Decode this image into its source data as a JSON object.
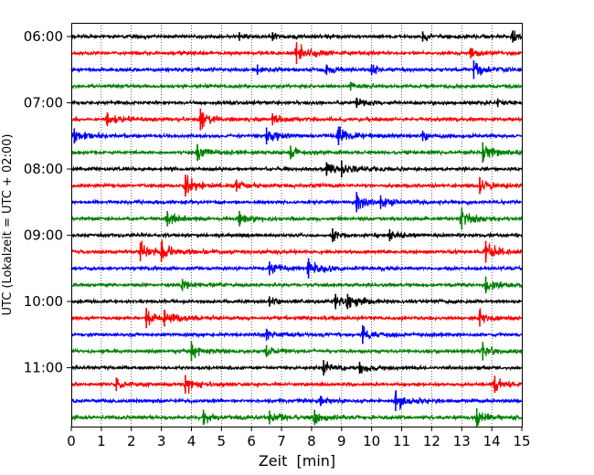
{
  "chart_data": {
    "type": "line",
    "title": "",
    "xlabel": "Zeit  [min]",
    "ylabel": "UTC (Lokalzeit = UTC + 02:00)",
    "xlim": [
      0,
      15
    ],
    "x_ticks": [
      "0",
      "1",
      "2",
      "3",
      "4",
      "5",
      "6",
      "7",
      "8",
      "9",
      "10",
      "11",
      "12",
      "13",
      "14",
      "15"
    ],
    "y_ticks": [
      "06:00",
      "07:00",
      "08:00",
      "09:00",
      "10:00",
      "11:00"
    ],
    "grid": "vertical-dotted",
    "row_interval_min": 15,
    "trace_colors": [
      "#000000",
      "#ff0000",
      "#0000ff",
      "#008000"
    ],
    "traces": [
      {
        "start": "06:00",
        "color": "#000000",
        "events": [
          {
            "t": 5.6,
            "a": 0.2
          },
          {
            "t": 6.7,
            "a": 0.2
          },
          {
            "t": 11.7,
            "a": 0.3
          },
          {
            "t": 14.7,
            "a": 0.4
          }
        ]
      },
      {
        "start": "06:15",
        "color": "#ff0000",
        "events": [
          {
            "t": 7.5,
            "a": 1.0
          },
          {
            "t": 13.3,
            "a": 0.3
          }
        ]
      },
      {
        "start": "06:30",
        "color": "#0000ff",
        "events": [
          {
            "t": 6.2,
            "a": 0.3
          },
          {
            "t": 8.5,
            "a": 0.3
          },
          {
            "t": 10.0,
            "a": 0.3
          },
          {
            "t": 13.4,
            "a": 0.8
          }
        ]
      },
      {
        "start": "06:45",
        "color": "#008000",
        "events": [
          {
            "t": 9.3,
            "a": 0.2
          }
        ]
      },
      {
        "start": "07:00",
        "color": "#000000",
        "events": [
          {
            "t": 9.5,
            "a": 0.3
          },
          {
            "t": 14.2,
            "a": 0.2
          }
        ]
      },
      {
        "start": "07:15",
        "color": "#ff0000",
        "events": [
          {
            "t": 1.2,
            "a": 0.5
          },
          {
            "t": 4.3,
            "a": 1.0
          },
          {
            "t": 6.7,
            "a": 0.4
          }
        ]
      },
      {
        "start": "07:30",
        "color": "#0000ff",
        "events": [
          {
            "t": 0.1,
            "a": 0.6
          },
          {
            "t": 6.5,
            "a": 0.7
          },
          {
            "t": 8.9,
            "a": 0.8
          },
          {
            "t": 11.7,
            "a": 0.3
          }
        ]
      },
      {
        "start": "07:45",
        "color": "#008000",
        "events": [
          {
            "t": 4.2,
            "a": 0.7
          },
          {
            "t": 7.3,
            "a": 0.5
          },
          {
            "t": 13.7,
            "a": 0.9
          }
        ]
      },
      {
        "start": "08:00",
        "color": "#000000",
        "events": [
          {
            "t": 8.5,
            "a": 0.5
          },
          {
            "t": 9.0,
            "a": 0.7
          }
        ]
      },
      {
        "start": "08:15",
        "color": "#ff0000",
        "events": [
          {
            "t": 3.8,
            "a": 1.0
          },
          {
            "t": 5.5,
            "a": 0.4
          },
          {
            "t": 13.6,
            "a": 0.7
          }
        ]
      },
      {
        "start": "08:30",
        "color": "#0000ff",
        "events": [
          {
            "t": 9.5,
            "a": 0.9
          },
          {
            "t": 10.3,
            "a": 0.5
          }
        ]
      },
      {
        "start": "08:45",
        "color": "#008000",
        "events": [
          {
            "t": 3.2,
            "a": 0.6
          },
          {
            "t": 5.6,
            "a": 0.6
          },
          {
            "t": 13.0,
            "a": 1.0
          }
        ]
      },
      {
        "start": "09:00",
        "color": "#000000",
        "events": [
          {
            "t": 8.7,
            "a": 0.5
          },
          {
            "t": 10.6,
            "a": 0.4
          }
        ]
      },
      {
        "start": "09:15",
        "color": "#ff0000",
        "events": [
          {
            "t": 2.3,
            "a": 0.8
          },
          {
            "t": 3.0,
            "a": 0.9
          },
          {
            "t": 13.8,
            "a": 1.0
          }
        ]
      },
      {
        "start": "09:30",
        "color": "#0000ff",
        "events": [
          {
            "t": 6.6,
            "a": 0.5
          },
          {
            "t": 7.9,
            "a": 0.9
          }
        ]
      },
      {
        "start": "09:45",
        "color": "#008000",
        "events": [
          {
            "t": 3.7,
            "a": 0.4
          },
          {
            "t": 13.8,
            "a": 0.7
          }
        ]
      },
      {
        "start": "10:00",
        "color": "#000000",
        "events": [
          {
            "t": 6.6,
            "a": 0.3
          },
          {
            "t": 8.8,
            "a": 0.6
          },
          {
            "t": 9.2,
            "a": 0.6
          }
        ]
      },
      {
        "start": "10:15",
        "color": "#ff0000",
        "events": [
          {
            "t": 2.5,
            "a": 0.9
          },
          {
            "t": 3.1,
            "a": 0.7
          },
          {
            "t": 13.6,
            "a": 0.7
          }
        ]
      },
      {
        "start": "10:30",
        "color": "#0000ff",
        "events": [
          {
            "t": 6.5,
            "a": 0.4
          },
          {
            "t": 9.7,
            "a": 0.8
          }
        ]
      },
      {
        "start": "10:45",
        "color": "#008000",
        "events": [
          {
            "t": 4.0,
            "a": 0.9
          },
          {
            "t": 6.5,
            "a": 0.4
          },
          {
            "t": 13.7,
            "a": 0.8
          }
        ]
      },
      {
        "start": "11:00",
        "color": "#000000",
        "events": [
          {
            "t": 8.4,
            "a": 0.6
          },
          {
            "t": 9.6,
            "a": 0.4
          }
        ]
      },
      {
        "start": "11:15",
        "color": "#ff0000",
        "events": [
          {
            "t": 1.5,
            "a": 0.5
          },
          {
            "t": 3.8,
            "a": 0.8
          },
          {
            "t": 14.1,
            "a": 0.7
          }
        ]
      },
      {
        "start": "11:30",
        "color": "#0000ff",
        "events": [
          {
            "t": 8.3,
            "a": 0.3
          },
          {
            "t": 10.8,
            "a": 0.9
          }
        ]
      },
      {
        "start": "11:45",
        "color": "#008000",
        "events": [
          {
            "t": 4.4,
            "a": 0.6
          },
          {
            "t": 6.6,
            "a": 0.5
          },
          {
            "t": 8.1,
            "a": 0.6
          },
          {
            "t": 13.5,
            "a": 0.8
          }
        ]
      }
    ]
  }
}
